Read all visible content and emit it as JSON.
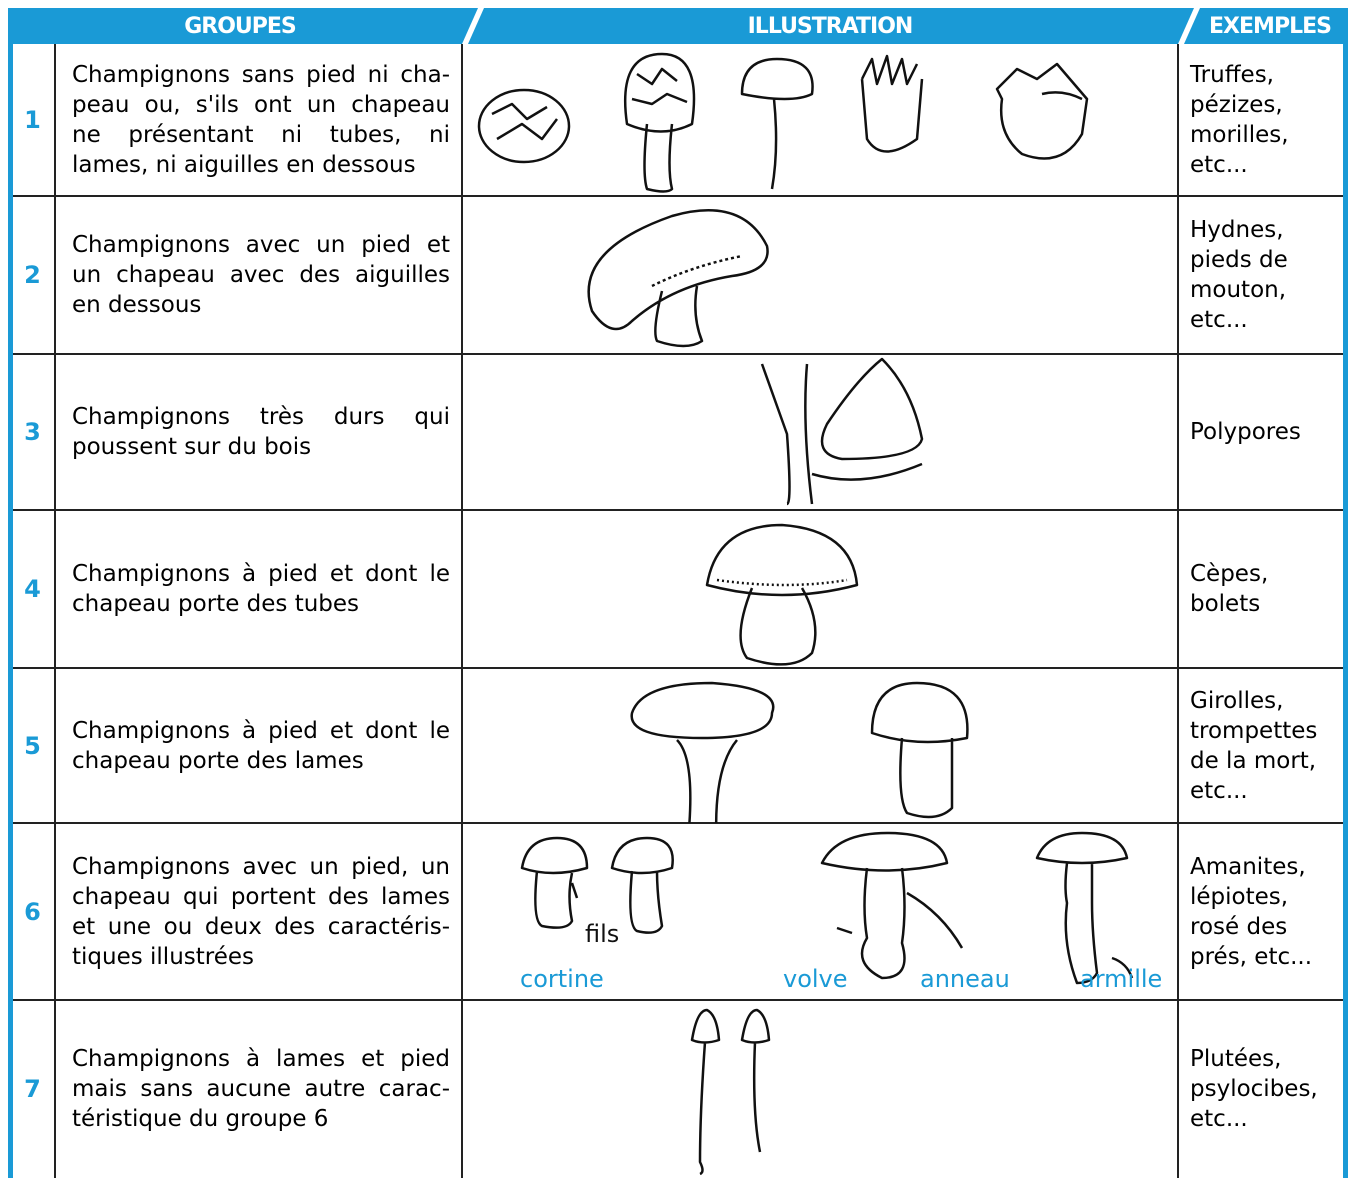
{
  "header": {
    "columns": [
      "GROUPES",
      "ILLUSTRATION",
      "EXEMPLES"
    ]
  },
  "table": {
    "rows": [
      {
        "number": "1",
        "description": [
          "Champignons sans pied ni cha-",
          "peau ou, s'ils ont un chapeau",
          "ne présentant ni tubes, ni",
          "lames, ni aiguilles en dessous"
        ],
        "examples": [
          "Truffes,",
          "pézizes,",
          "morilles,",
          "etc..."
        ]
      },
      {
        "number": "2",
        "description": [
          "Champignons avec un pied et",
          "un chapeau avec des aiguilles",
          "en dessous"
        ],
        "examples": [
          "Hydnes,",
          "pieds de",
          "mouton,",
          "etc..."
        ]
      },
      {
        "number": "3",
        "description": [
          "Champignons très durs qui",
          "poussent sur du bois"
        ],
        "examples": [
          "Polypores"
        ]
      },
      {
        "number": "4",
        "description": [
          "Champignons à pied et dont le",
          "chapeau porte des tubes"
        ],
        "examples": [
          "Cèpes,",
          "bolets"
        ]
      },
      {
        "number": "5",
        "description": [
          "Champignons à pied et dont le",
          "chapeau porte des lames"
        ],
        "examples": [
          "Girolles,",
          "trompettes",
          "de la mort,",
          "etc..."
        ]
      },
      {
        "number": "6",
        "description": [
          "Champignons avec un pied, un",
          "chapeau qui portent des lames",
          "et une ou deux des caractéris-",
          "tiques illustrées"
        ],
        "examples": [
          "Amanites,",
          "lépiotes,",
          "rosé des",
          "prés, etc..."
        ],
        "labels": [
          "fils",
          "cortine",
          "volve",
          "anneau",
          "armille"
        ]
      },
      {
        "number": "7",
        "description": [
          "Champignons à lames et pied",
          "mais sans aucune autre carac-",
          "téristique du groupe 6"
        ],
        "examples": [
          "Plutées,",
          "psylocibes,",
          "etc..."
        ]
      }
    ]
  }
}
